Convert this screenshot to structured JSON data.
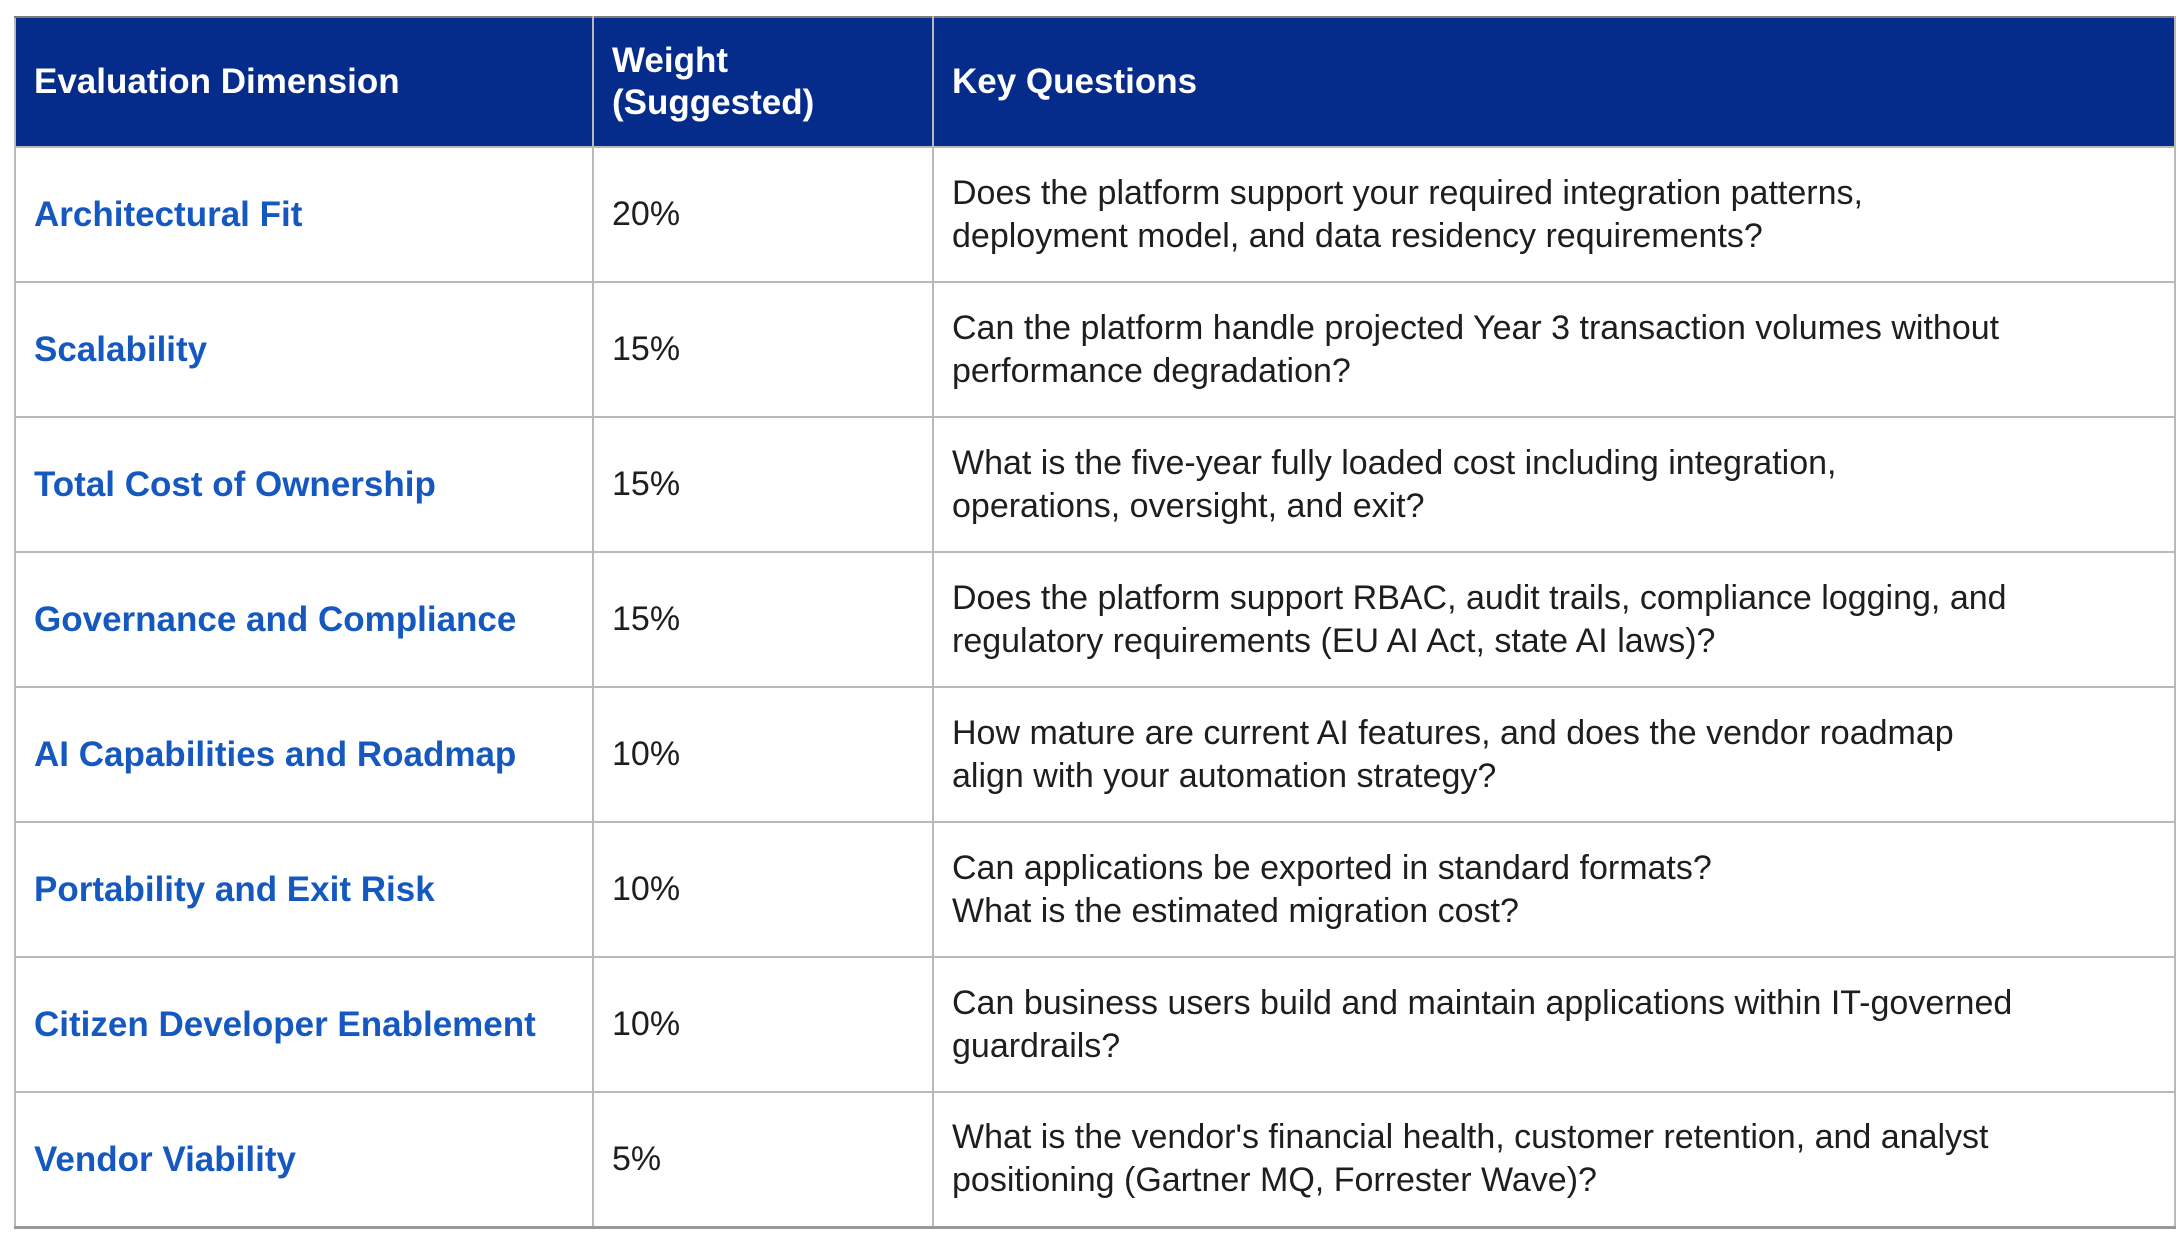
{
  "table": {
    "headers": [
      "Evaluation Dimension",
      "Weight\n(Suggested)",
      "Key Questions"
    ],
    "rows": [
      {
        "dimension": "Architectural Fit",
        "weight": "20%",
        "question": "Does the platform support your required integration patterns,\ndeployment model, and data residency requirements?"
      },
      {
        "dimension": "Scalability",
        "weight": "15%",
        "question": "Can the platform handle projected Year 3 transaction volumes without\nperformance degradation?"
      },
      {
        "dimension": "Total Cost of Ownership",
        "weight": "15%",
        "question": "What is the five-year fully loaded cost including integration,\noperations, oversight, and exit?"
      },
      {
        "dimension": "Governance and Compliance",
        "weight": "15%",
        "question": "Does the platform support RBAC, audit trails, compliance logging, and\nregulatory requirements (EU AI Act, state AI laws)?"
      },
      {
        "dimension": "AI Capabilities and Roadmap",
        "weight": "10%",
        "question": "How mature are current AI features, and does the vendor roadmap\nalign with your automation strategy?"
      },
      {
        "dimension": "Portability and Exit Risk",
        "weight": "10%",
        "question": "Can applications be exported in standard formats?\nWhat is the estimated migration cost?"
      },
      {
        "dimension": "Citizen Developer Enablement",
        "weight": "10%",
        "question": "Can business users build and maintain applications within IT-governed\nguardrails?"
      },
      {
        "dimension": "Vendor Viability",
        "weight": "5%",
        "question": "What is the vendor's financial health, customer retention, and analyst\npositioning (Gartner MQ, Forrester Wave)?"
      }
    ]
  },
  "colors": {
    "header_bg": "#052c8a",
    "header_text": "#ffffff",
    "dimension_text": "#1559c0",
    "body_text": "#1e1e1e",
    "border": "#b9b9b9"
  }
}
